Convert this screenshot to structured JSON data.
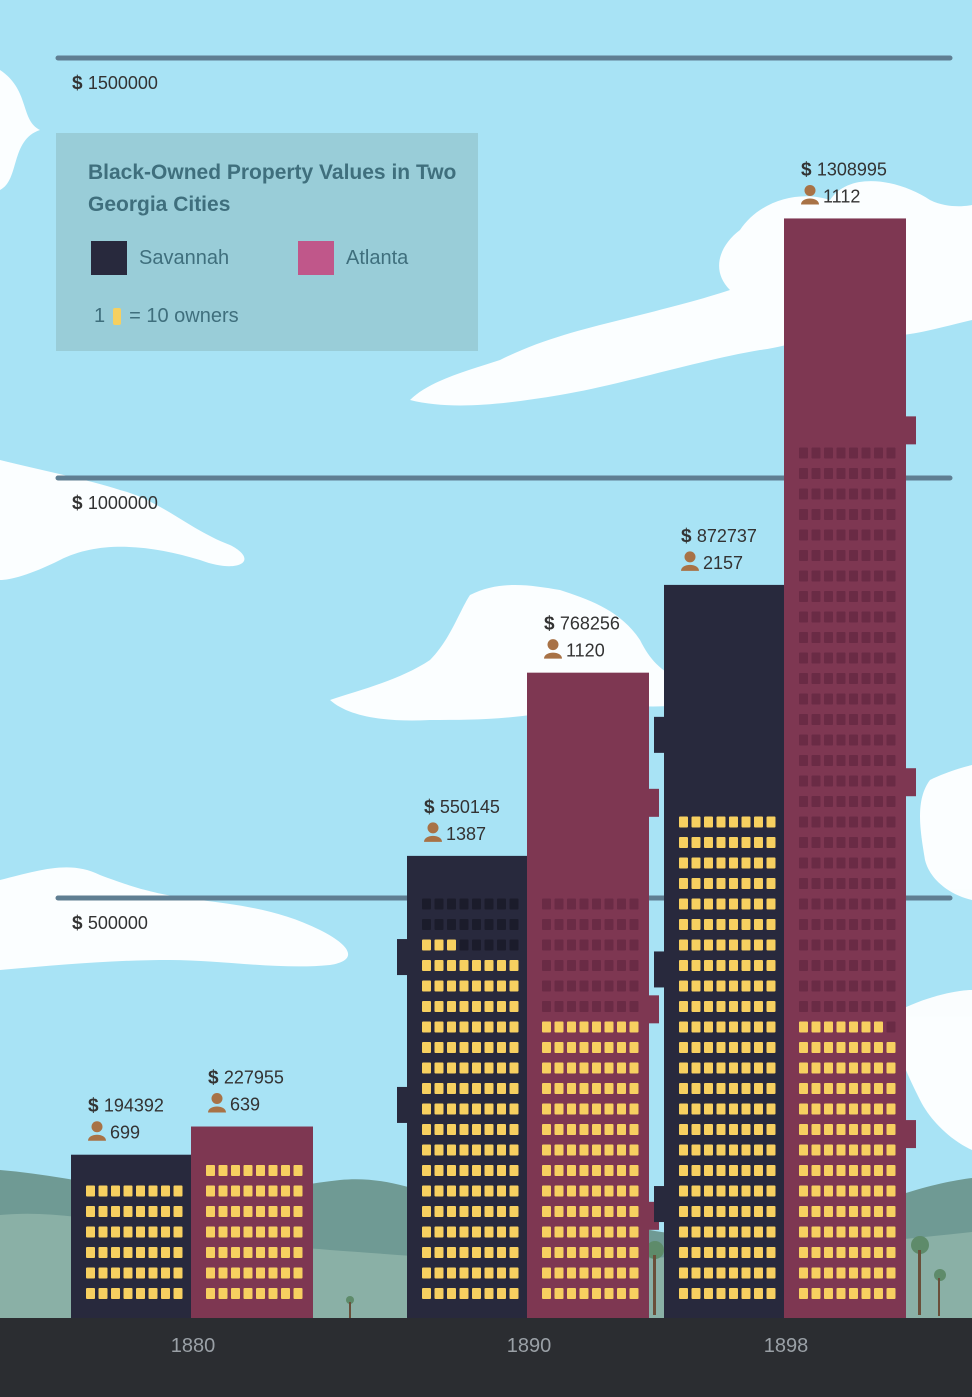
{
  "colors": {
    "sky": "#a8e3f5",
    "savannah": "#28293d",
    "atlanta": "#7e3752",
    "window_lit": "#f7d060",
    "gridline": "#5f7e92",
    "person_icon": "#a87246",
    "ground": "#2b2d31"
  },
  "legend": {
    "title": "Black-Owned Property Values in Two Georgia Cities",
    "note_prefix": "1",
    "note_suffix": "= 10 owners",
    "items": [
      {
        "label": "Savannah",
        "color": "#28293d",
        "swatch_icon": "square-swatch-icon"
      },
      {
        "label": "Atlanta",
        "color": "#c0578a",
        "swatch_icon": "square-swatch-icon"
      }
    ]
  },
  "chart_data": {
    "type": "bar",
    "title": "Black-Owned Property Values in Two Georgia Cities",
    "categories": [
      "1880",
      "1890",
      "1898"
    ],
    "series": [
      {
        "name": "Savannah",
        "values": [
          194392,
          550145,
          872737
        ],
        "owners": [
          699,
          1387,
          2157
        ]
      },
      {
        "name": "Atlanta",
        "values": [
          227955,
          768256,
          1308995
        ],
        "owners": [
          639,
          1120,
          1112
        ]
      }
    ],
    "y_ticks": [
      {
        "value": 500000,
        "label": "500000"
      },
      {
        "value": 1000000,
        "label": "1000000"
      },
      {
        "value": 1500000,
        "label": "1500000"
      }
    ],
    "ylim": [
      0,
      1500000
    ],
    "owners_per_window": 10,
    "currency_symbol": "$",
    "grid": true,
    "legend_position": "top-left"
  }
}
